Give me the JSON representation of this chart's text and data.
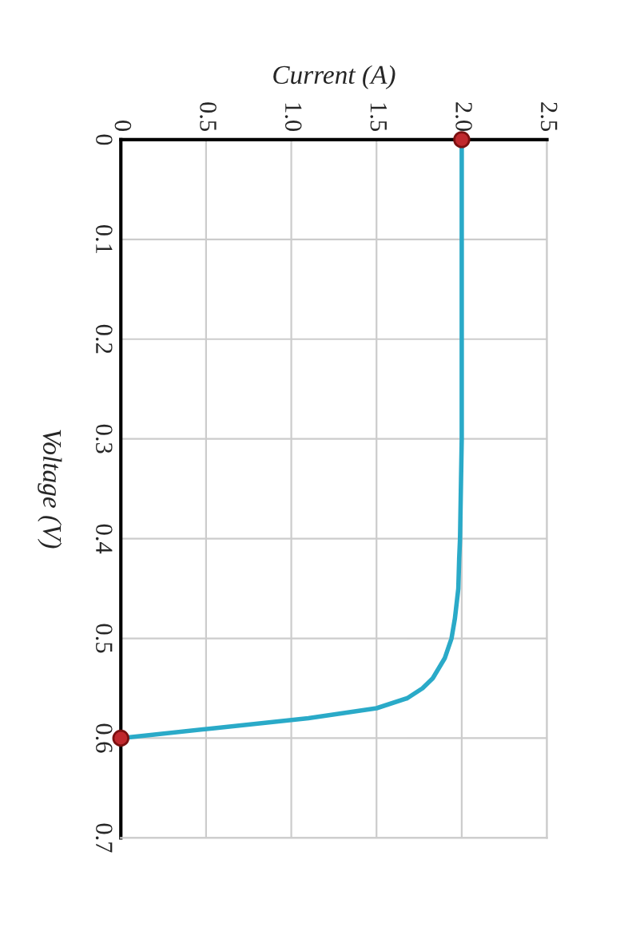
{
  "chart_data": {
    "type": "line",
    "xlabel": "Current (A)",
    "ylabel": "Voltage (V)",
    "series": [
      {
        "color": "#2aaac8",
        "marker": "none",
        "x": [
          2.0,
          2.0,
          2.0,
          2.0,
          1.99,
          1.985,
          1.98,
          1.96,
          1.94,
          1.9,
          1.83,
          1.77,
          1.68,
          1.5,
          1.1,
          0.55,
          0.0
        ],
        "values": [
          0,
          0.1,
          0.2,
          0.3,
          0.4,
          0.42,
          0.45,
          0.48,
          0.5,
          0.52,
          0.54,
          0.55,
          0.56,
          0.57,
          0.58,
          0.59,
          0.6
        ]
      },
      {
        "type": "scatter",
        "color": "#c0282d",
        "marker": "circle",
        "x": [
          2.0,
          0.0
        ],
        "values": [
          0,
          0.6
        ]
      }
    ],
    "xlim": [
      0,
      2.5
    ],
    "xticks": [
      {
        "value": 0,
        "label": "0"
      },
      0.5,
      {
        "value": 1,
        "label": "1.0"
      },
      1.5,
      {
        "value": 2,
        "label": "2.0"
      },
      2.5
    ],
    "ylim": [
      0.7,
      0
    ],
    "yticks": [
      {
        "value": 0,
        "label": "0"
      },
      0.1,
      0.2,
      0.3,
      0.4,
      0.5,
      0.6,
      0.7
    ],
    "grid": true
  }
}
